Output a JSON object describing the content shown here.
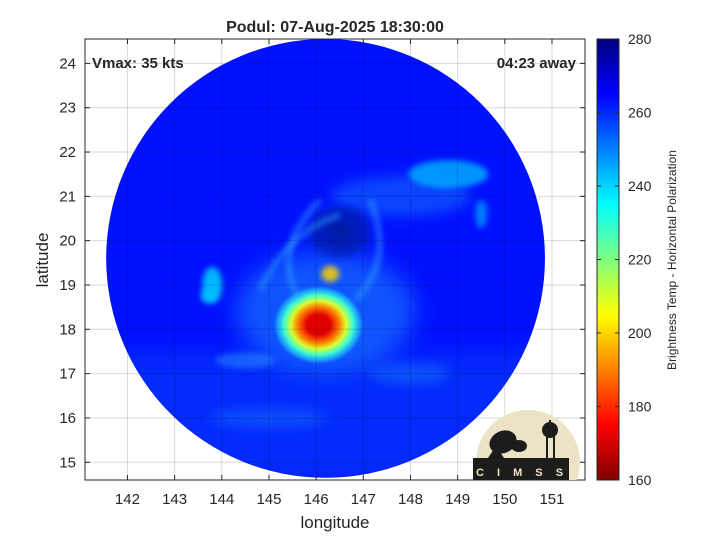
{
  "chart_data": {
    "type": "heatmap",
    "title": "Podul: 07-Aug-2025 18:30:00",
    "annotations": {
      "vmax": "Vmax: 35 kts",
      "time_away": "04:23 away"
    },
    "xlabel": "longitude",
    "ylabel": "latitude",
    "xlim": [
      141.1,
      151.7
    ],
    "ylim": [
      14.6,
      24.55
    ],
    "xticks": [
      142,
      143,
      144,
      145,
      146,
      147,
      148,
      149,
      150,
      151
    ],
    "yticks": [
      15,
      16,
      17,
      18,
      19,
      20,
      21,
      22,
      23,
      24
    ],
    "grid": true,
    "colorbar": {
      "label": "Brightness Temp - Horizontal Polarization",
      "range": [
        160,
        280
      ],
      "ticks": [
        160,
        180,
        200,
        220,
        240,
        260,
        280
      ],
      "colormap": "jet"
    },
    "field": {
      "swath_center": [
        146.2,
        19.6
      ],
      "swath_radius_lat": 4.95,
      "background_value": 263,
      "features": [
        {
          "lon": 146.05,
          "lat": 18.1,
          "value": 172
        },
        {
          "lon": 146.0,
          "lat": 18.15,
          "value": 225
        },
        {
          "lon": 146.3,
          "lat": 19.25,
          "value": 200
        },
        {
          "lon": 143.8,
          "lat": 19.0,
          "value": 240
        },
        {
          "lon": 143.7,
          "lat": 18.75,
          "value": 242
        },
        {
          "lon": 148.8,
          "lat": 21.5,
          "value": 245
        },
        {
          "lon": 146.5,
          "lat": 20.2,
          "value": 270
        },
        {
          "lon": 149.5,
          "lat": 20.6,
          "value": 248
        }
      ]
    },
    "logo": {
      "text": "CIMSS",
      "colors": {
        "disc": "#ece2c6",
        "band": "#1c1c1c"
      }
    }
  }
}
